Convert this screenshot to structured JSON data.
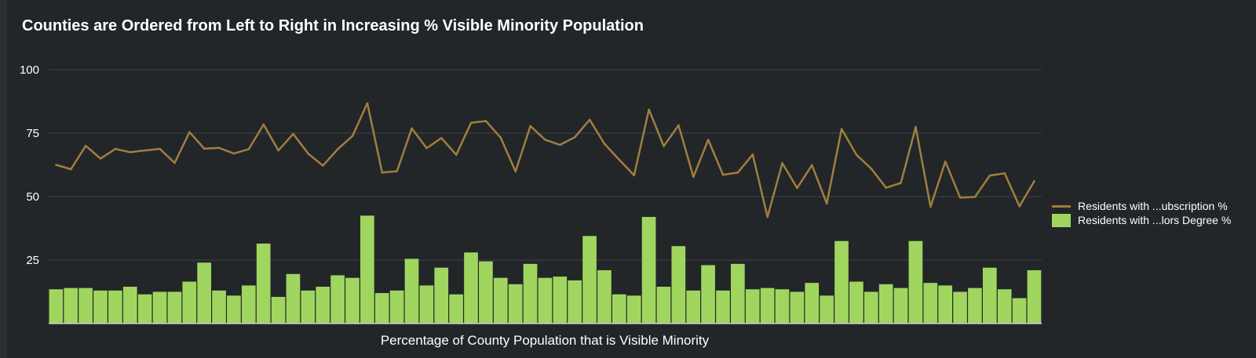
{
  "chart_data": {
    "type": "bar+line",
    "title": "Counties are Ordered from Left to Right in Increasing % Visible Minority Population",
    "xlabel": "Percentage of County Population that is Visible Minority",
    "ylabel": "",
    "ylim": [
      0,
      100
    ],
    "yticks": [
      25,
      50,
      75,
      100
    ],
    "grid": true,
    "legend_position": "right",
    "series": [
      {
        "name": "Residents with ...ubscription %",
        "kind": "line",
        "color": "#a07e3e",
        "values": [
          62.5,
          60.8,
          70,
          65,
          68.8,
          67.5,
          68.2,
          68.8,
          63.3,
          75.4,
          68.9,
          69.2,
          67,
          68.7,
          78.4,
          68.2,
          74.7,
          67,
          62.2,
          68.7,
          73.9,
          86.8,
          59.5,
          60,
          76.9,
          69.1,
          73.1,
          66.5,
          79.1,
          79.8,
          73.2,
          59.9,
          77.8,
          72.4,
          70.4,
          73.4,
          80.3,
          70.8,
          64.5,
          58.4,
          84.3,
          69.9,
          78.1,
          57.8,
          72.4,
          58.6,
          59.5,
          66.6,
          42,
          63.2,
          53.4,
          62.4,
          47.3,
          76.7,
          66.5,
          61,
          53.5,
          55.4,
          77.4,
          46,
          63.8,
          49.6,
          49.9,
          58.3,
          59.2,
          46.2,
          56.1
        ]
      },
      {
        "name": "Residents with ...lors Degree %",
        "kind": "bar",
        "color": "#a0d65f",
        "values": [
          13.5,
          14,
          14,
          13,
          13,
          14.5,
          11.5,
          12.5,
          12.5,
          16.5,
          24,
          13,
          11,
          15,
          31.5,
          10.5,
          19.5,
          13,
          14.5,
          19,
          18,
          42.5,
          12,
          13,
          25.5,
          15,
          22,
          11.5,
          28,
          24.5,
          18,
          15.5,
          23.5,
          18,
          18.5,
          17,
          34.5,
          21,
          11.5,
          11,
          42,
          14.5,
          30.5,
          13,
          23,
          13,
          23.5,
          13.5,
          14,
          13.5,
          12.5,
          16,
          11,
          32.5,
          16.5,
          12.5,
          15.5,
          14,
          32.5,
          16,
          15,
          12.5,
          14,
          22,
          13.5,
          10,
          21
        ]
      }
    ]
  }
}
